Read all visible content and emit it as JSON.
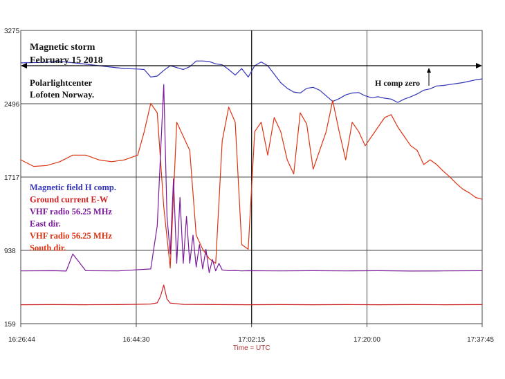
{
  "colors": {
    "magnetic": "#3333bb",
    "ground": "#cc2222",
    "vhf_east": "#7a1a9a",
    "vhf_south": "#dd3311",
    "grid": "#444444",
    "axis_title": "#b03030",
    "text_black": "#111111"
  },
  "chart_data": {
    "type": "line",
    "title": "Magnetic storm",
    "subtitle": "February 15 2018",
    "location": [
      "Polarlightcenter",
      "Lofoten Norway."
    ],
    "xlabel": "Time = UTC",
    "ylabel": "",
    "x_ticks": [
      "16:26:44",
      "16:44:30",
      "17:02:15",
      "17:20:00",
      "17:37:45"
    ],
    "xlim": [
      "16:26:44",
      "17:37:45"
    ],
    "y_ticks": [
      3275,
      2496,
      1717,
      938,
      159
    ],
    "ylim": [
      159,
      3275
    ],
    "grid": true,
    "legend_position": "left",
    "annotation": "H comp zero",
    "legend": [
      {
        "text": "Magnetic field H comp.",
        "color": "#3333bb"
      },
      {
        "text": "Ground current E-W",
        "color": "#cc2222"
      },
      {
        "text": "VHF radio 56.25 MHz",
        "color": "#7a1a9a"
      },
      {
        "text": "East dir.",
        "color": "#7a1a9a"
      },
      {
        "text": "VHF radio 56.25 MHz",
        "color": "#dd3311"
      },
      {
        "text": "South dir.",
        "color": "#dd3311"
      }
    ],
    "series": [
      {
        "id": "magnetic_h",
        "name": "Magnetic field H comp.",
        "color": "#3333bb",
        "x": [
          0,
          3,
          6,
          9,
          12,
          14,
          16,
          18,
          19,
          20,
          21,
          22,
          23,
          24,
          25,
          26,
          27,
          28,
          29,
          30,
          31,
          32,
          33,
          34,
          35,
          36,
          37,
          38,
          39,
          40,
          41,
          42,
          43,
          44,
          45,
          46,
          47,
          48,
          49,
          50,
          51,
          52,
          53,
          54,
          55,
          56,
          57,
          58,
          59,
          60,
          61,
          62,
          63,
          64,
          65,
          66,
          67,
          68,
          69,
          70,
          71
        ],
        "y": [
          2930,
          2935,
          2945,
          2925,
          2900,
          2885,
          2870,
          2865,
          2860,
          2780,
          2790,
          2850,
          2900,
          2880,
          2860,
          2890,
          2950,
          2950,
          2945,
          2920,
          2910,
          2860,
          2800,
          2870,
          2780,
          2900,
          2940,
          2900,
          2810,
          2720,
          2660,
          2620,
          2610,
          2660,
          2670,
          2640,
          2580,
          2520,
          2550,
          2590,
          2610,
          2615,
          2580,
          2560,
          2570,
          2555,
          2545,
          2510,
          2545,
          2570,
          2600,
          2640,
          2655,
          2685,
          2690,
          2700,
          2710,
          2720,
          2735,
          2750,
          2760
        ]
      },
      {
        "id": "vhf_south",
        "name": "VHF radio 56.25 MHz South dir.",
        "color": "#dd3311",
        "x": [
          0,
          2,
          4,
          6,
          8,
          10,
          12,
          14,
          16,
          18,
          19,
          20,
          21,
          22,
          23,
          24,
          25,
          26,
          27,
          28,
          29,
          30,
          31,
          32,
          33,
          34,
          35,
          36,
          37,
          38,
          39,
          40,
          41,
          42,
          43,
          44,
          45,
          46,
          47,
          48,
          49,
          50,
          51,
          52,
          53,
          54,
          55,
          56,
          57,
          58,
          59,
          60,
          61,
          62,
          63,
          64,
          65,
          66,
          67,
          68,
          69,
          70,
          71
        ],
        "y": [
          1900,
          1830,
          1840,
          1880,
          1950,
          1950,
          1900,
          1880,
          1900,
          1950,
          2200,
          2500,
          2400,
          1400,
          750,
          2300,
          2150,
          2000,
          1100,
          950,
          850,
          800,
          2100,
          2460,
          2300,
          1000,
          950,
          2200,
          2300,
          1950,
          2350,
          2200,
          1900,
          1750,
          2400,
          2280,
          1800,
          2000,
          2200,
          2530,
          2200,
          1900,
          2300,
          2200,
          2050,
          2150,
          2250,
          2350,
          2380,
          2250,
          2150,
          2050,
          2000,
          1850,
          1900,
          1850,
          1780,
          1720,
          1650,
          1590,
          1550,
          1500,
          1480
        ]
      },
      {
        "id": "vhf_east",
        "name": "VHF radio 56.25 MHz East dir.",
        "color": "#7a1a9a",
        "x": [
          0,
          5,
          7,
          8,
          10,
          15,
          20,
          21,
          22,
          22.5,
          23,
          23.5,
          24,
          24.5,
          25,
          25.5,
          26,
          26.5,
          27,
          27.5,
          28,
          28.5,
          29,
          29.5,
          30,
          30.5,
          31,
          32,
          33,
          34,
          35,
          40,
          45,
          50,
          55,
          60,
          65,
          71
        ],
        "y": [
          720,
          722,
          718,
          900,
          722,
          720,
          740,
          1200,
          2700,
          1300,
          900,
          1700,
          800,
          1500,
          800,
          1300,
          800,
          1100,
          760,
          1000,
          740,
          950,
          700,
          840,
          720,
          800,
          730,
          722,
          724,
          720,
          722,
          720,
          722,
          720,
          722,
          718,
          720,
          722
        ]
      },
      {
        "id": "ground_ew",
        "name": "Ground current E-W",
        "color": "#cc2222",
        "x": [
          0,
          5,
          10,
          15,
          18,
          20,
          21,
          21.5,
          22,
          22.5,
          23,
          25,
          30,
          35,
          40,
          45,
          50,
          55,
          60,
          65,
          71
        ],
        "y": [
          360,
          362,
          360,
          362,
          365,
          368,
          380,
          450,
          570,
          420,
          378,
          364,
          362,
          360,
          362,
          360,
          362,
          360,
          362,
          360,
          362
        ]
      }
    ]
  }
}
